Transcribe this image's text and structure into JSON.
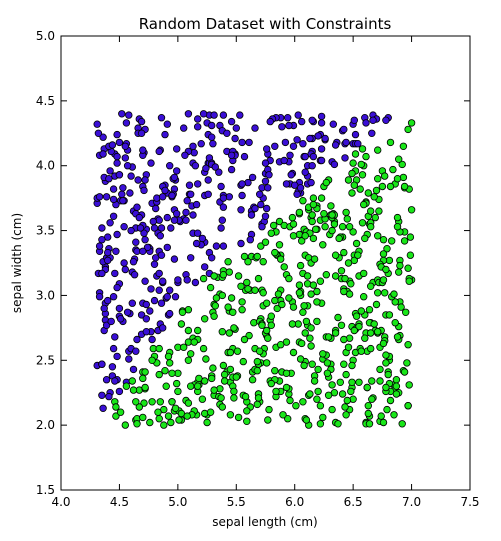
{
  "chart_data": {
    "type": "scatter",
    "title": "Random Dataset with Constraints",
    "xlabel": "sepal length (cm)",
    "ylabel": "sepal width (cm)",
    "xlim": [
      4.0,
      7.5
    ],
    "ylim": [
      1.5,
      5.0
    ],
    "xticks": [
      "4.0",
      "4.5",
      "5.0",
      "5.5",
      "6.0",
      "6.5",
      "7.0",
      "7.5"
    ],
    "yticks": [
      "1.5",
      "2.0",
      "2.5",
      "3.0",
      "3.5",
      "4.0",
      "4.5",
      "5.0"
    ],
    "grid": false,
    "legend": "none",
    "series": [
      {
        "color": "#3a0fd6",
        "edge": "#000000",
        "points": []
      },
      {
        "color": "#19e619",
        "edge": "#000000",
        "points": []
      }
    ]
  }
}
